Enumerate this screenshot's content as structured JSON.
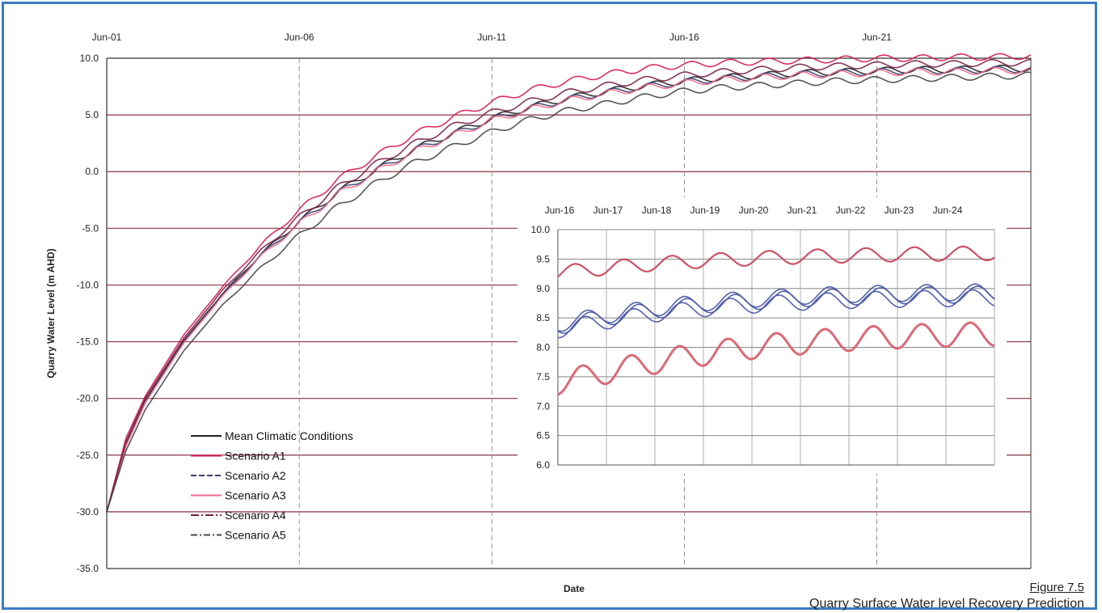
{
  "figure": {
    "number": "Figure 7.5",
    "title": "Quarry Surface Water level Recovery Prediction"
  },
  "colors": {
    "mean": "#222222",
    "a1": "#d81b4f",
    "a2": "#3a3f6e",
    "a3": "#f06a8a",
    "a4": "#7a1f4a",
    "a5": "#444444",
    "inset_upper": "#c9485e",
    "inset_blue": "#4b59a8",
    "inset_lower": "#d9626f",
    "grid": "#777777",
    "gridRed": "#8a3340",
    "frame": "#3b7dbf"
  },
  "chart_data": [
    {
      "type": "line",
      "id": "main",
      "xlabel": "Date",
      "ylabel": "Quarry Water Level (m AHD)",
      "x_ticks": [
        "Jun-01",
        "Jun-06",
        "Jun-11",
        "Jun-16",
        "Jun-21"
      ],
      "x_range": [
        "Jun-01",
        "Jun-25"
      ],
      "ylim": [
        -35.0,
        10.0
      ],
      "y_ticks": [
        "10.0",
        "5.0",
        "0.0",
        "-5.0",
        "-10.0",
        "-15.0",
        "-20.0",
        "-25.0",
        "-30.0",
        "-35.0"
      ],
      "legend": {
        "position": "lower-left",
        "entries": [
          "Mean Climatic Conditions",
          "Scenario A1",
          "Scenario A2",
          "Scenario A3",
          "Scenario A4",
          "Scenario A5"
        ]
      },
      "grid": true,
      "series": [
        {
          "name": "Mean Climatic Conditions",
          "years": [
            0,
            0.5,
            1,
            2,
            3,
            4,
            5,
            6,
            7,
            8,
            9,
            10,
            11,
            12,
            13,
            14,
            15,
            16,
            17,
            18,
            19,
            20,
            21,
            22,
            23,
            24
          ],
          "values": [
            -30.0,
            -24.0,
            -20.2,
            -14.9,
            -10.8,
            -7.3,
            -4.4,
            -1.8,
            0.2,
            2.0,
            3.4,
            4.7,
            5.7,
            6.5,
            7.1,
            7.6,
            8.0,
            8.3,
            8.5,
            8.7,
            8.8,
            8.9,
            9.0,
            9.0,
            9.1,
            9.1
          ]
        },
        {
          "name": "Scenario A1",
          "years": [
            0,
            0.5,
            1,
            2,
            3,
            4,
            5,
            6,
            7,
            8,
            9,
            10,
            11,
            12,
            13,
            14,
            15,
            16,
            17,
            18,
            19,
            20,
            21,
            22,
            23,
            24
          ],
          "values": [
            -30.0,
            -23.5,
            -19.8,
            -14.4,
            -10.2,
            -6.5,
            -3.4,
            -0.7,
            1.4,
            3.3,
            4.8,
            6.1,
            7.2,
            8.0,
            8.6,
            9.1,
            9.4,
            9.6,
            9.7,
            9.8,
            9.9,
            10.0,
            10.0,
            10.1,
            10.1,
            10.2
          ]
        },
        {
          "name": "Scenario A2",
          "years": [
            0,
            0.5,
            1,
            2,
            3,
            4,
            5,
            6,
            7,
            8,
            9,
            10,
            11,
            12,
            13,
            14,
            15,
            16,
            17,
            18,
            19,
            20,
            21,
            22,
            23,
            24
          ],
          "values": [
            -30.0,
            -24.1,
            -20.3,
            -15.0,
            -10.9,
            -7.4,
            -4.5,
            -1.9,
            0.1,
            1.9,
            3.3,
            4.6,
            5.6,
            6.4,
            7.0,
            7.5,
            7.9,
            8.2,
            8.4,
            8.6,
            8.7,
            8.8,
            8.9,
            8.9,
            9.0,
            9.0
          ]
        },
        {
          "name": "Scenario A3",
          "years": [
            0,
            0.5,
            1,
            2,
            3,
            4,
            5,
            6,
            7,
            8,
            9,
            10,
            11,
            12,
            13,
            14,
            15,
            16,
            17,
            18,
            19,
            20,
            21,
            22,
            23,
            24
          ],
          "values": [
            -30.0,
            -24.2,
            -20.4,
            -15.1,
            -11.0,
            -7.5,
            -4.6,
            -2.0,
            0.0,
            1.8,
            3.2,
            4.5,
            5.5,
            6.3,
            6.9,
            7.4,
            7.8,
            8.1,
            8.3,
            8.5,
            8.6,
            8.7,
            8.8,
            8.8,
            8.9,
            8.9
          ]
        },
        {
          "name": "Scenario A4",
          "years": [
            0,
            0.5,
            1,
            2,
            3,
            4,
            5,
            6,
            7,
            8,
            9,
            10,
            11,
            12,
            13,
            14,
            15,
            16,
            17,
            18,
            19,
            20,
            21,
            22,
            23,
            24
          ],
          "values": [
            -30.0,
            -23.8,
            -20.0,
            -14.7,
            -10.5,
            -7.0,
            -4.0,
            -1.4,
            0.7,
            2.5,
            4.0,
            5.2,
            6.2,
            7.0,
            7.6,
            8.1,
            8.5,
            8.8,
            9.0,
            9.2,
            9.3,
            9.4,
            9.5,
            9.5,
            9.6,
            9.6
          ]
        },
        {
          "name": "Scenario A5",
          "years": [
            0,
            0.5,
            1,
            2,
            3,
            4,
            5,
            6,
            7,
            8,
            9,
            10,
            11,
            12,
            13,
            14,
            15,
            16,
            17,
            18,
            19,
            20,
            21,
            22,
            23,
            24
          ],
          "values": [
            -30.0,
            -24.6,
            -21.0,
            -15.8,
            -11.8,
            -8.5,
            -5.6,
            -3.1,
            -1.0,
            0.8,
            2.2,
            3.5,
            4.6,
            5.4,
            6.0,
            6.6,
            7.1,
            7.4,
            7.6,
            7.8,
            8.0,
            8.1,
            8.2,
            8.3,
            8.4,
            8.5
          ]
        }
      ]
    },
    {
      "type": "line",
      "id": "inset",
      "x_ticks": [
        "Jun-16",
        "Jun-17",
        "Jun-18",
        "Jun-19",
        "Jun-20",
        "Jun-21",
        "Jun-22",
        "Jun-23",
        "Jun-24"
      ],
      "x_range": [
        "Jun-16",
        "Jun-25"
      ],
      "ylim": [
        6.0,
        10.0
      ],
      "y_ticks": [
        "10.0",
        "9.5",
        "9.0",
        "8.5",
        "8.0",
        "7.5",
        "7.0",
        "6.5",
        "6.0"
      ],
      "grid": true,
      "series": [
        {
          "years": [
            0,
            1,
            2,
            3,
            4,
            5,
            6,
            7,
            8,
            9
          ],
          "values": [
            9.27,
            9.35,
            9.42,
            9.47,
            9.51,
            9.54,
            9.56,
            9.58,
            9.59,
            9.6
          ],
          "amplitude": 0.12
        },
        {
          "years": [
            0,
            1,
            2,
            3,
            4,
            5,
            6,
            7,
            8,
            9
          ],
          "values": [
            8.4,
            8.55,
            8.67,
            8.76,
            8.82,
            8.87,
            8.9,
            8.92,
            8.93,
            8.94
          ],
          "amplitude": 0.14
        },
        {
          "years": [
            0,
            1,
            2,
            3,
            4,
            5,
            6,
            7,
            8,
            9
          ],
          "values": [
            8.3,
            8.45,
            8.57,
            8.66,
            8.72,
            8.77,
            8.8,
            8.82,
            8.83,
            8.84
          ],
          "amplitude": 0.14
        },
        {
          "years": [
            0,
            1,
            2,
            3,
            4,
            5,
            6,
            7,
            8,
            9
          ],
          "values": [
            8.36,
            8.51,
            8.63,
            8.72,
            8.78,
            8.83,
            8.86,
            8.88,
            8.89,
            8.9
          ],
          "amplitude": 0.14
        },
        {
          "years": [
            0,
            1,
            2,
            3,
            4,
            5,
            6,
            7,
            8,
            9
          ],
          "values": [
            7.4,
            7.58,
            7.75,
            7.89,
            8.0,
            8.08,
            8.14,
            8.18,
            8.21,
            8.23
          ],
          "amplitude": 0.2
        }
      ]
    }
  ]
}
